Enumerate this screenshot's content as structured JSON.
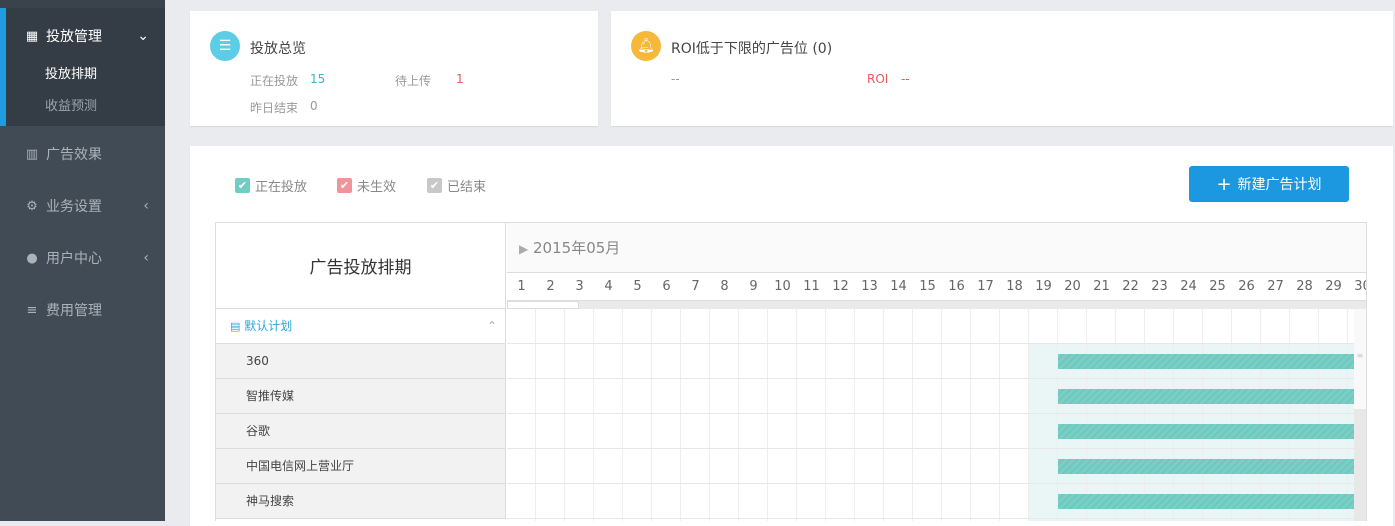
{
  "sidebar": {
    "items": [
      {
        "label": "投放管理",
        "icon": "grid-icon",
        "expanded": true,
        "children": [
          {
            "label": "投放排期",
            "active": true
          },
          {
            "label": "收益预测"
          }
        ]
      },
      {
        "label": "广告效果",
        "icon": "bar-chart-icon"
      },
      {
        "label": "业务设置",
        "icon": "gear-icon"
      },
      {
        "label": "用户中心",
        "icon": "user-icon"
      },
      {
        "label": "费用管理",
        "icon": "database-icon"
      }
    ]
  },
  "overview": {
    "title": "投放总览",
    "running_label": "正在投放",
    "running": "15",
    "pending_label": "待上传",
    "pending": "1",
    "ended_label": "昨日结束",
    "ended": "0"
  },
  "roi": {
    "title": "ROI低于下限的广告位 (0)",
    "value": "--",
    "roi_label": "ROI",
    "roi_value": "--"
  },
  "legend": [
    {
      "label": "正在投放",
      "color": "#6fcdc4"
    },
    {
      "label": "未生效",
      "color": "#f0949c"
    },
    {
      "label": "已结束",
      "color": "#c8c8c8"
    }
  ],
  "new_button": "新建广告计划",
  "gantt": {
    "title": "广告投放排期",
    "month": "2015年05月",
    "days": [
      "1",
      "2",
      "3",
      "4",
      "5",
      "6",
      "7",
      "8",
      "9",
      "10",
      "11",
      "12",
      "13",
      "14",
      "15",
      "16",
      "17",
      "18",
      "19",
      "20",
      "21",
      "22",
      "23",
      "24",
      "25",
      "26",
      "27",
      "28",
      "29",
      "30"
    ],
    "highlight_from_day": 19,
    "group": "默认计划",
    "rows": [
      {
        "name": "360",
        "start": 20,
        "end": 30
      },
      {
        "name": "智推传媒",
        "start": 20,
        "end": 30
      },
      {
        "name": "谷歌",
        "start": 20,
        "end": 30
      },
      {
        "name": "中国电信网上营业厅",
        "start": 20,
        "end": 30
      },
      {
        "name": "神马搜索",
        "start": 20,
        "end": 30
      }
    ]
  }
}
